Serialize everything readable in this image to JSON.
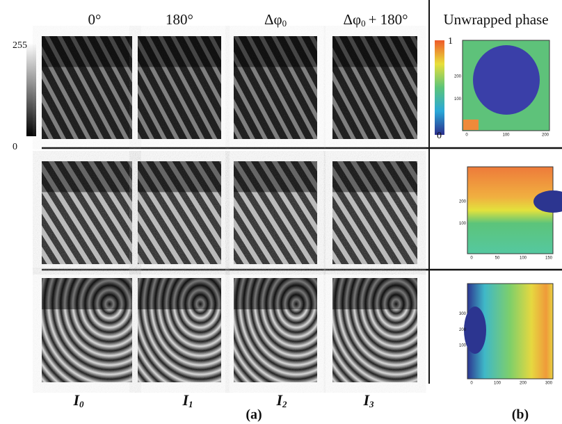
{
  "columns": [
    {
      "label": "0°"
    },
    {
      "label": "180°"
    },
    {
      "label": "Δφ",
      "sub": "0"
    },
    {
      "label": "Δφ",
      "sub": "0",
      "suffix": "+ 180°"
    }
  ],
  "phase_title": "Unwrapped phase",
  "gray_bar": {
    "top": "255",
    "bottom": "0"
  },
  "color_bar": {
    "top": "1",
    "bottom": "0"
  },
  "image_labels": [
    {
      "main": "I",
      "sub": "0"
    },
    {
      "main": "I",
      "sub": "1"
    },
    {
      "main": "I",
      "sub": "2"
    },
    {
      "main": "I",
      "sub": "3"
    }
  ],
  "panel_a": "(a)",
  "panel_b": "(b)",
  "phase_maps": [
    {
      "xticks": [
        "0",
        "100",
        "200"
      ],
      "yticks": [
        "100",
        "200"
      ]
    },
    {
      "xticks": [
        "0",
        "50",
        "100",
        "150"
      ],
      "yticks": [
        "100",
        "200"
      ]
    },
    {
      "xticks": [
        "0",
        "100",
        "200",
        "300"
      ],
      "yticks": [
        "100",
        "200",
        "300"
      ]
    }
  ]
}
